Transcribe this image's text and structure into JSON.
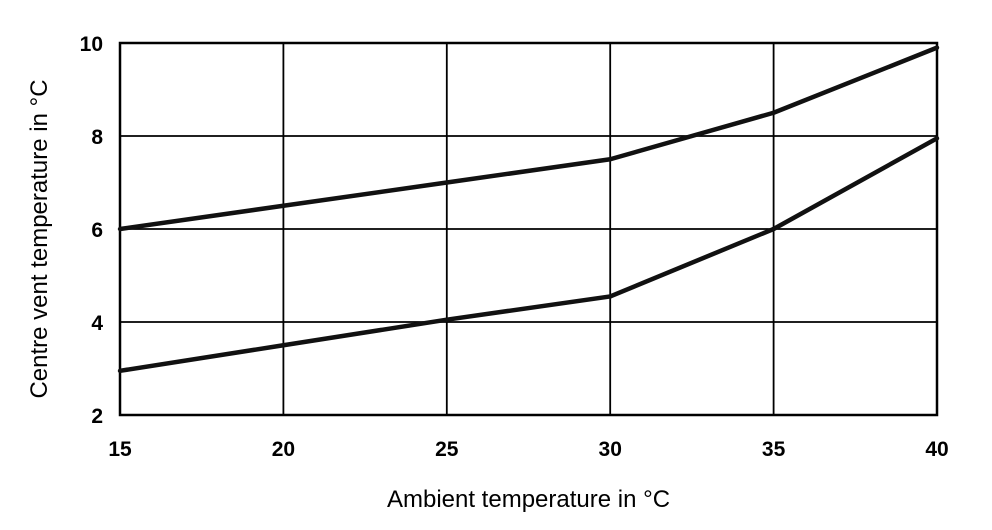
{
  "chart_data": {
    "type": "line",
    "title": "",
    "xlabel": "Ambient temperature in °C",
    "ylabel": "Centre vent temperature in °C",
    "xlim": [
      15,
      40
    ],
    "ylim": [
      2,
      10
    ],
    "xticks": [
      "15",
      "20",
      "25",
      "30",
      "35",
      "40"
    ],
    "yticks": [
      "2",
      "4",
      "6",
      "8",
      "10"
    ],
    "grid": true,
    "legend": "none",
    "line_color": "#111111",
    "series": [
      {
        "x": [
          15,
          20,
          25,
          30,
          35,
          40
        ],
        "y": [
          6.0,
          6.5,
          7.0,
          7.5,
          8.5,
          9.9
        ]
      },
      {
        "x": [
          15,
          20,
          25,
          30,
          35,
          40
        ],
        "y": [
          2.95,
          3.5,
          4.05,
          4.55,
          6.0,
          7.95
        ]
      }
    ]
  }
}
